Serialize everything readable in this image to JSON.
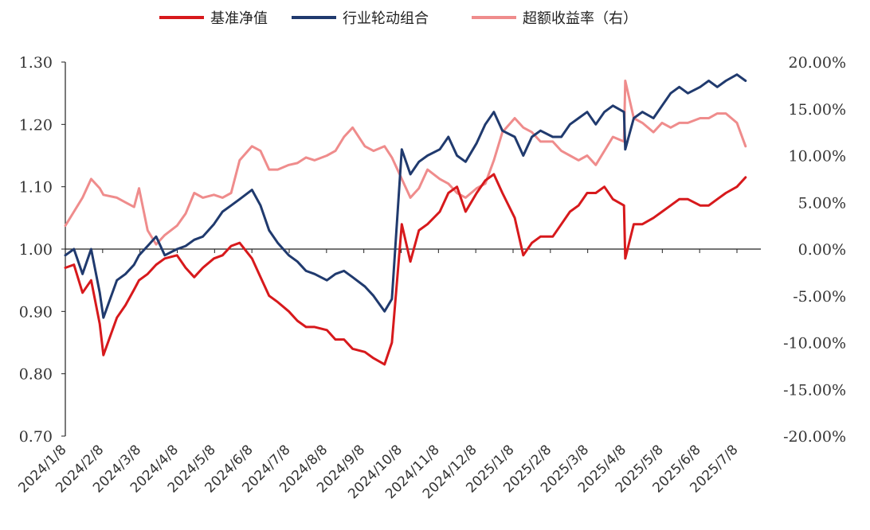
{
  "chart_data": {
    "type": "line",
    "legend": {
      "placement": "top",
      "entries": [
        {
          "label": "基准净值",
          "color": "#d7191c"
        },
        {
          "label": "行业轮动组合",
          "color": "#203a6e"
        },
        {
          "label": "超额收益率（右）",
          "color": "#ef8c8c"
        }
      ]
    },
    "x_tick_labels": [
      "2024/1/8",
      "2024/2/8",
      "2024/3/8",
      "2024/4/8",
      "2024/5/8",
      "2024/6/8",
      "2024/7/8",
      "2024/8/8",
      "2024/9/8",
      "2024/10/8",
      "2024/11/8",
      "2024/12/8",
      "2025/1/8",
      "2025/2/8",
      "2025/3/8",
      "2025/4/8",
      "2025/5/8",
      "2025/6/8",
      "2025/7/8"
    ],
    "y_left": {
      "range": [
        0.7,
        1.3
      ],
      "ticks": [
        "0.70",
        "0.80",
        "0.90",
        "1.00",
        "1.10",
        "1.20",
        "1.30"
      ]
    },
    "y_right": {
      "range": [
        -20,
        20
      ],
      "ticks": [
        "-20.00%",
        "-15.00%",
        "-10.00%",
        "-5.00%",
        "0.00%",
        "5.00%",
        "10.00%",
        "15.00%",
        "20.00%"
      ]
    },
    "grid": false,
    "series": [
      {
        "name": "基准净值",
        "axis": "left",
        "color": "#d7191c",
        "x": [
          "2024/1/8",
          "2024/1/15",
          "2024/1/22",
          "2024/1/29",
          "2024/2/5",
          "2024/2/8",
          "2024/2/19",
          "2024/2/26",
          "2024/3/4",
          "2024/3/8",
          "2024/3/15",
          "2024/3/22",
          "2024/3/29",
          "2024/4/8",
          "2024/4/15",
          "2024/4/22",
          "2024/4/29",
          "2024/5/8",
          "2024/5/15",
          "2024/5/22",
          "2024/5/29",
          "2024/6/8",
          "2024/6/15",
          "2024/6/22",
          "2024/6/29",
          "2024/7/8",
          "2024/7/15",
          "2024/7/22",
          "2024/7/29",
          "2024/8/8",
          "2024/8/15",
          "2024/8/22",
          "2024/8/29",
          "2024/9/8",
          "2024/9/15",
          "2024/9/24",
          "2024/9/30",
          "2024/10/8",
          "2024/10/15",
          "2024/10/22",
          "2024/10/29",
          "2024/11/8",
          "2024/11/15",
          "2024/11/22",
          "2024/11/29",
          "2024/12/8",
          "2024/12/15",
          "2024/12/22",
          "2024/12/29",
          "2025/1/8",
          "2025/1/15",
          "2025/1/22",
          "2025/1/29",
          "2025/2/8",
          "2025/2/15",
          "2025/2/22",
          "2025/3/1",
          "2025/3/8",
          "2025/3/15",
          "2025/3/22",
          "2025/3/29",
          "2025/4/7",
          "2025/4/8",
          "2025/4/15",
          "2025/4/22",
          "2025/5/1",
          "2025/5/8",
          "2025/5/15",
          "2025/5/22",
          "2025/5/29",
          "2025/6/8",
          "2025/6/15",
          "2025/6/22",
          "2025/6/29",
          "2025/7/8",
          "2025/7/15"
        ],
        "values": [
          0.97,
          0.975,
          0.93,
          0.95,
          0.88,
          0.83,
          0.89,
          0.91,
          0.935,
          0.95,
          0.96,
          0.975,
          0.985,
          0.99,
          0.97,
          0.955,
          0.97,
          0.985,
          0.99,
          1.005,
          1.01,
          0.985,
          0.955,
          0.925,
          0.915,
          0.9,
          0.885,
          0.875,
          0.875,
          0.87,
          0.855,
          0.855,
          0.84,
          0.835,
          0.825,
          0.815,
          0.85,
          1.04,
          0.98,
          1.03,
          1.04,
          1.06,
          1.09,
          1.1,
          1.06,
          1.09,
          1.11,
          1.12,
          1.09,
          1.05,
          0.99,
          1.01,
          1.02,
          1.02,
          1.04,
          1.06,
          1.07,
          1.09,
          1.09,
          1.1,
          1.08,
          1.07,
          0.985,
          1.04,
          1.04,
          1.05,
          1.06,
          1.07,
          1.08,
          1.08,
          1.07,
          1.07,
          1.08,
          1.09,
          1.1,
          1.115
        ]
      },
      {
        "name": "行业轮动组合",
        "axis": "left",
        "color": "#203a6e",
        "x": [
          "2024/1/8",
          "2024/1/15",
          "2024/1/22",
          "2024/1/29",
          "2024/2/5",
          "2024/2/8",
          "2024/2/19",
          "2024/2/26",
          "2024/3/4",
          "2024/3/8",
          "2024/3/15",
          "2024/3/22",
          "2024/3/29",
          "2024/4/8",
          "2024/4/15",
          "2024/4/22",
          "2024/4/29",
          "2024/5/8",
          "2024/5/15",
          "2024/5/22",
          "2024/5/29",
          "2024/6/8",
          "2024/6/15",
          "2024/6/22",
          "2024/6/29",
          "2024/7/8",
          "2024/7/15",
          "2024/7/22",
          "2024/7/29",
          "2024/8/8",
          "2024/8/15",
          "2024/8/22",
          "2024/8/29",
          "2024/9/8",
          "2024/9/15",
          "2024/9/24",
          "2024/9/30",
          "2024/10/8",
          "2024/10/15",
          "2024/10/22",
          "2024/10/29",
          "2024/11/8",
          "2024/11/15",
          "2024/11/22",
          "2024/11/29",
          "2024/12/8",
          "2024/12/15",
          "2024/12/22",
          "2024/12/29",
          "2025/1/8",
          "2025/1/15",
          "2025/1/22",
          "2025/1/29",
          "2025/2/8",
          "2025/2/15",
          "2025/2/22",
          "2025/3/1",
          "2025/3/8",
          "2025/3/15",
          "2025/3/22",
          "2025/3/29",
          "2025/4/7",
          "2025/4/8",
          "2025/4/15",
          "2025/4/22",
          "2025/5/1",
          "2025/5/8",
          "2025/5/15",
          "2025/5/22",
          "2025/5/29",
          "2025/6/8",
          "2025/6/15",
          "2025/6/22",
          "2025/6/29",
          "2025/7/8",
          "2025/7/15"
        ],
        "values": [
          0.99,
          1.0,
          0.96,
          1.0,
          0.93,
          0.89,
          0.95,
          0.96,
          0.975,
          0.99,
          1.005,
          1.02,
          0.99,
          1.0,
          1.005,
          1.015,
          1.02,
          1.04,
          1.06,
          1.07,
          1.08,
          1.095,
          1.07,
          1.03,
          1.01,
          0.99,
          0.98,
          0.965,
          0.96,
          0.95,
          0.96,
          0.965,
          0.955,
          0.94,
          0.925,
          0.9,
          0.92,
          1.16,
          1.12,
          1.14,
          1.15,
          1.16,
          1.18,
          1.15,
          1.14,
          1.17,
          1.2,
          1.22,
          1.19,
          1.18,
          1.15,
          1.18,
          1.19,
          1.18,
          1.18,
          1.2,
          1.21,
          1.22,
          1.2,
          1.22,
          1.23,
          1.22,
          1.16,
          1.21,
          1.22,
          1.21,
          1.23,
          1.25,
          1.26,
          1.25,
          1.26,
          1.27,
          1.26,
          1.27,
          1.28,
          1.27
        ]
      },
      {
        "name": "超额收益率（右）",
        "axis": "right",
        "color": "#ef8c8c",
        "x": [
          "2024/1/8",
          "2024/1/15",
          "2024/1/22",
          "2024/1/29",
          "2024/2/5",
          "2024/2/8",
          "2024/2/19",
          "2024/2/26",
          "2024/3/4",
          "2024/3/8",
          "2024/3/15",
          "2024/3/22",
          "2024/3/29",
          "2024/4/8",
          "2024/4/15",
          "2024/4/22",
          "2024/4/29",
          "2024/5/8",
          "2024/5/15",
          "2024/5/22",
          "2024/5/29",
          "2024/6/8",
          "2024/6/15",
          "2024/6/22",
          "2024/6/29",
          "2024/7/8",
          "2024/7/15",
          "2024/7/22",
          "2024/7/29",
          "2024/8/8",
          "2024/8/15",
          "2024/8/22",
          "2024/8/29",
          "2024/9/8",
          "2024/9/15",
          "2024/9/24",
          "2024/9/30",
          "2024/10/8",
          "2024/10/15",
          "2024/10/22",
          "2024/10/29",
          "2024/11/8",
          "2024/11/15",
          "2024/11/22",
          "2024/11/29",
          "2024/12/8",
          "2024/12/15",
          "2024/12/22",
          "2024/12/29",
          "2025/1/8",
          "2025/1/15",
          "2025/1/22",
          "2025/1/29",
          "2025/2/8",
          "2025/2/15",
          "2025/2/22",
          "2025/3/1",
          "2025/3/8",
          "2025/3/15",
          "2025/3/22",
          "2025/3/29",
          "2025/4/7",
          "2025/4/8",
          "2025/4/15",
          "2025/4/22",
          "2025/5/1",
          "2025/5/8",
          "2025/5/15",
          "2025/5/22",
          "2025/5/29",
          "2025/6/8",
          "2025/6/15",
          "2025/6/22",
          "2025/6/29",
          "2025/7/8",
          "2025/7/15"
        ],
        "values": [
          2.5,
          4.0,
          5.5,
          7.5,
          6.5,
          5.8,
          5.5,
          5.0,
          4.5,
          6.5,
          2.0,
          0.5,
          1.5,
          2.5,
          3.8,
          6.0,
          5.5,
          5.8,
          5.5,
          6.0,
          9.5,
          11.0,
          10.5,
          8.5,
          8.5,
          9.0,
          9.2,
          9.8,
          9.5,
          10.0,
          10.5,
          12.0,
          13.0,
          11.0,
          10.5,
          11.0,
          9.8,
          7.5,
          5.5,
          6.5,
          8.5,
          7.5,
          7.0,
          6.0,
          5.5,
          6.5,
          7.0,
          9.5,
          12.5,
          14.0,
          13.0,
          12.5,
          11.5,
          11.5,
          10.5,
          10.0,
          9.5,
          10.0,
          9.0,
          10.5,
          12.0,
          11.5,
          18.0,
          14.0,
          13.5,
          12.5,
          13.5,
          13.0,
          13.5,
          13.5,
          14.0,
          14.0,
          14.5,
          14.5,
          13.5,
          11.0
        ]
      }
    ]
  }
}
